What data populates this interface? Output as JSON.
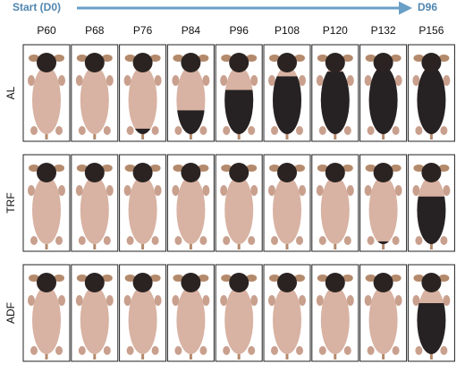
{
  "header": {
    "start": "Start (D0)",
    "end": "D96"
  },
  "columns": [
    "P60",
    "P68",
    "P76",
    "P84",
    "P96",
    "P108",
    "P120",
    "P132",
    "P156"
  ],
  "rows": [
    {
      "label": "AL"
    },
    {
      "label": "TRF"
    },
    {
      "label": "ADF"
    }
  ]
}
